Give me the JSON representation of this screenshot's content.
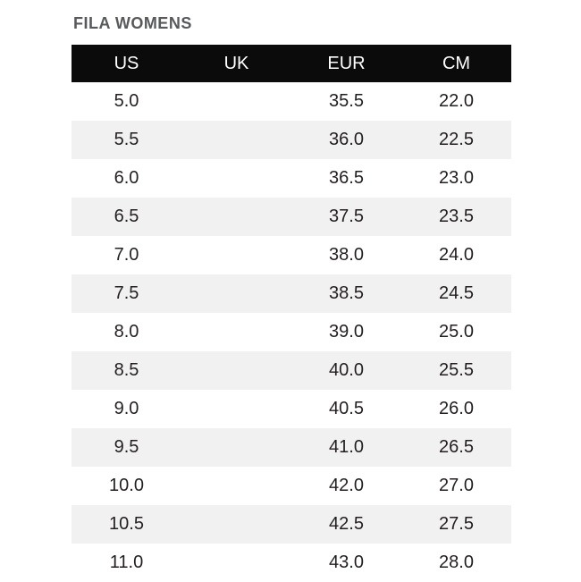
{
  "title": "FILA WOMENS",
  "colors": {
    "header_bg": "#0b0b0b",
    "header_text": "#ffffff",
    "row_bg": "#ffffff",
    "row_alt_bg": "#f1f1f1",
    "body_text": "#231f20",
    "title_text": "#58595b"
  },
  "chart_data": {
    "type": "table",
    "title": "FILA WOMENS",
    "columns": [
      "US",
      "UK",
      "EUR",
      "CM"
    ],
    "rows": [
      [
        "5.0",
        "",
        "35.5",
        "22.0"
      ],
      [
        "5.5",
        "",
        "36.0",
        "22.5"
      ],
      [
        "6.0",
        "",
        "36.5",
        "23.0"
      ],
      [
        "6.5",
        "",
        "37.5",
        "23.5"
      ],
      [
        "7.0",
        "",
        "38.0",
        "24.0"
      ],
      [
        "7.5",
        "",
        "38.5",
        "24.5"
      ],
      [
        "8.0",
        "",
        "39.0",
        "25.0"
      ],
      [
        "8.5",
        "",
        "40.0",
        "25.5"
      ],
      [
        "9.0",
        "",
        "40.5",
        "26.0"
      ],
      [
        "9.5",
        "",
        "41.0",
        "26.5"
      ],
      [
        "10.0",
        "",
        "42.0",
        "27.0"
      ],
      [
        "10.5",
        "",
        "42.5",
        "27.5"
      ],
      [
        "11.0",
        "",
        "43.0",
        "28.0"
      ]
    ],
    "layout": {
      "alternating_rows": true,
      "first_row_background": "white",
      "header_style": "black-bar"
    }
  }
}
